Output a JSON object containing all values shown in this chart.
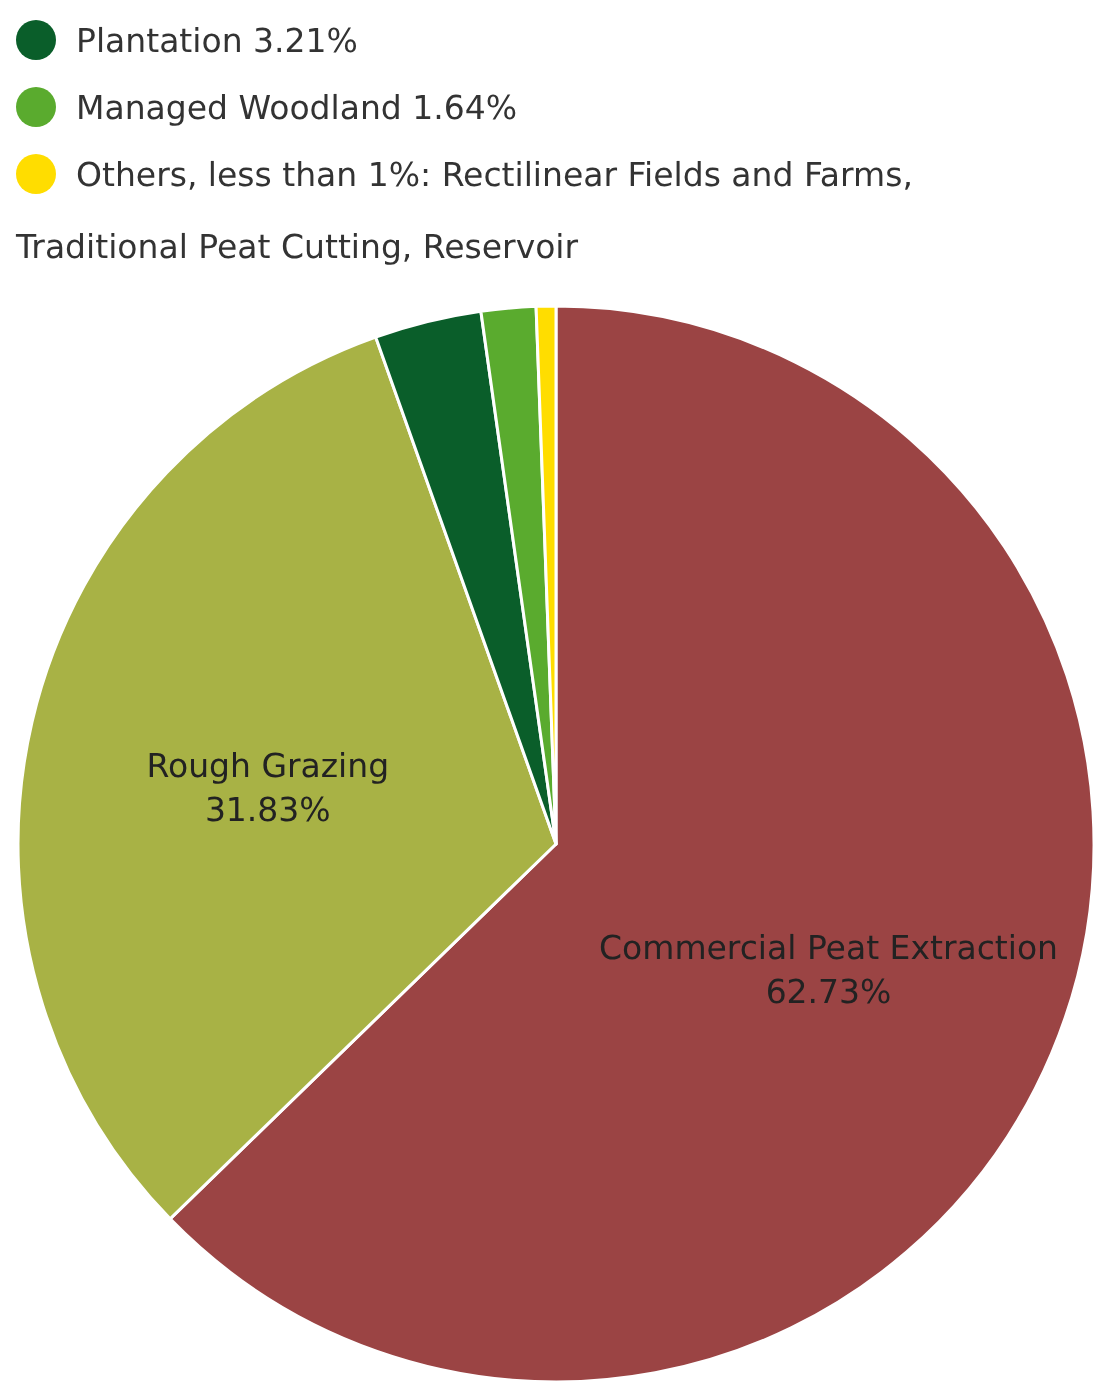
{
  "chart_data": {
    "type": "pie",
    "categories": [
      "Commercial Peat Extraction",
      "Rough Grazing",
      "Plantation",
      "Managed Woodland",
      "Others, less than 1%: Rectilinear Fields and Farms, Traditional Peat Cutting, Reservoir"
    ],
    "values": [
      62.73,
      31.83,
      3.21,
      1.64,
      0.59
    ],
    "value_labels": [
      "62.73%",
      "31.83%",
      "3.21%",
      "1.64%",
      null
    ],
    "colors": [
      "#9b4444",
      "#a8b245",
      "#0a5e2a",
      "#5aab2e",
      "#ffdd00"
    ],
    "legend": "top left"
  }
}
